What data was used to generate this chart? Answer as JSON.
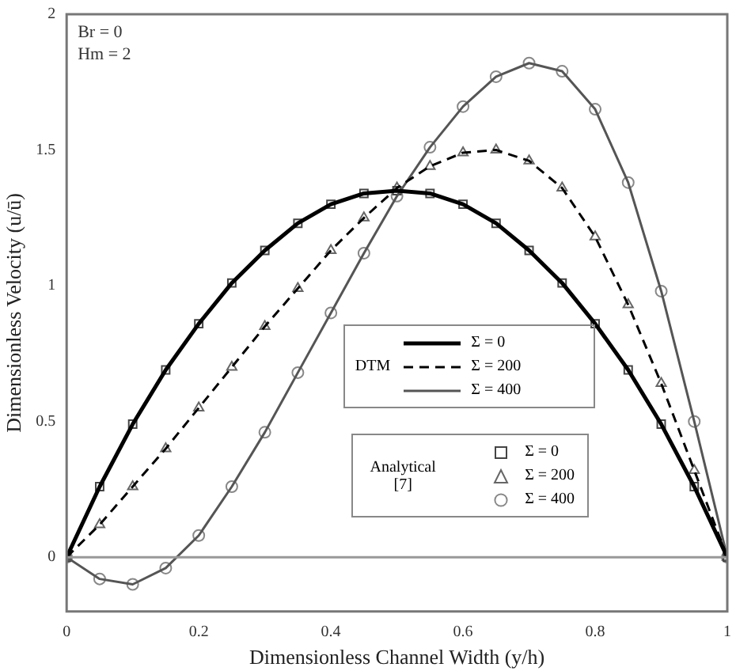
{
  "chart_data": {
    "type": "line",
    "xlabel": "Dimensionless Channel Width (y/h)",
    "ylabel": "Dimensionless Velocity (u/ū)",
    "annotations": [
      "Br = 0",
      "Hm = 2",
      "DTM",
      "Analytical [7]"
    ],
    "x": [
      0,
      0.05,
      0.1,
      0.15,
      0.2,
      0.25,
      0.3,
      0.35,
      0.4,
      0.45,
      0.5,
      0.55,
      0.6,
      0.65,
      0.7,
      0.75,
      0.8,
      0.85,
      0.9,
      0.95,
      1
    ],
    "series": [
      {
        "name": "Σ = 0",
        "type": "line",
        "line_style": "solid",
        "marker": "none",
        "color": "#000000",
        "values": [
          0,
          0.26,
          0.49,
          0.69,
          0.86,
          1.01,
          1.13,
          1.23,
          1.3,
          1.34,
          1.35,
          1.34,
          1.3,
          1.23,
          1.13,
          1.01,
          0.86,
          0.69,
          0.49,
          0.26,
          0
        ]
      },
      {
        "name": "Σ = 200",
        "type": "line",
        "line_style": "dashed",
        "marker": "none",
        "color": "#000000",
        "values": [
          0,
          0.12,
          0.26,
          0.4,
          0.55,
          0.7,
          0.85,
          0.99,
          1.13,
          1.25,
          1.36,
          1.44,
          1.49,
          1.5,
          1.46,
          1.36,
          1.18,
          0.93,
          0.64,
          0.32,
          0
        ]
      },
      {
        "name": "Σ = 400",
        "type": "line",
        "line_style": "solid",
        "marker": "none",
        "color": "#555555",
        "values": [
          0,
          -0.08,
          -0.1,
          -0.04,
          0.08,
          0.26,
          0.46,
          0.68,
          0.9,
          1.12,
          1.33,
          1.51,
          1.66,
          1.77,
          1.82,
          1.79,
          1.65,
          1.38,
          0.98,
          0.5,
          0
        ]
      },
      {
        "name": "Σ = 0",
        "type": "scatter",
        "marker": "square",
        "color": "#444444",
        "values": [
          0,
          0.26,
          0.49,
          0.69,
          0.86,
          1.01,
          1.13,
          1.23,
          1.3,
          1.34,
          1.35,
          1.34,
          1.3,
          1.23,
          1.13,
          1.01,
          0.86,
          0.69,
          0.49,
          0.26,
          0
        ]
      },
      {
        "name": "Σ = 200",
        "type": "scatter",
        "marker": "triangle",
        "color": "#666666",
        "values": [
          0,
          0.12,
          0.26,
          0.4,
          0.55,
          0.7,
          0.85,
          0.99,
          1.13,
          1.25,
          1.36,
          1.44,
          1.49,
          1.5,
          1.46,
          1.36,
          1.18,
          0.93,
          0.64,
          0.32,
          0
        ]
      },
      {
        "name": "Σ = 400",
        "type": "scatter",
        "marker": "circle",
        "color": "#888888",
        "values": [
          0,
          -0.08,
          -0.1,
          -0.04,
          0.08,
          0.26,
          0.46,
          0.68,
          0.9,
          1.12,
          1.33,
          1.51,
          1.66,
          1.77,
          1.82,
          1.79,
          1.65,
          1.38,
          0.98,
          0.5,
          0
        ]
      }
    ],
    "xlim": [
      0,
      1
    ],
    "xticks": [
      0,
      0.2,
      0.4,
      0.6,
      0.8,
      1
    ],
    "ylim": [
      -0.2,
      2
    ],
    "yticks": [
      0,
      0.5,
      1,
      1.5,
      2
    ],
    "ref_lines": [
      {
        "axis": "y",
        "value": 0,
        "color": "#999999"
      }
    ],
    "grid": false,
    "legend": "bottom right"
  }
}
